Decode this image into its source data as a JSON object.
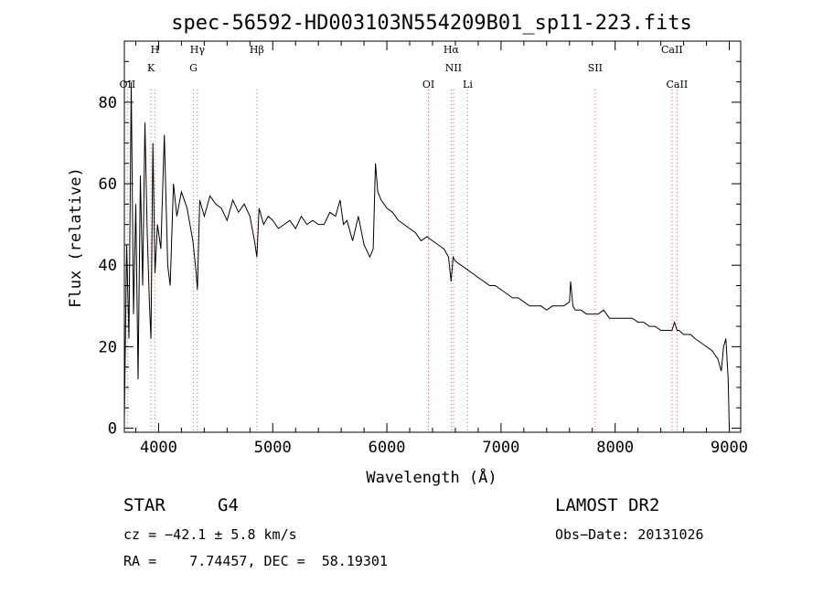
{
  "chart_data": {
    "type": "line",
    "title": "spec-56592-HD003103N554209B01_sp11-223.fits",
    "xlabel": "Wavelength (Å)",
    "ylabel": "Flux (relative)",
    "xlim": [
      3700,
      9100
    ],
    "ylim": [
      -1,
      95
    ],
    "x_ticks": [
      4000,
      5000,
      6000,
      7000,
      8000,
      9000
    ],
    "y_ticks": [
      0,
      20,
      40,
      60,
      80
    ],
    "grid": false,
    "series": [
      {
        "x": [
          3700,
          3720,
          3740,
          3760,
          3780,
          3800,
          3820,
          3840,
          3860,
          3880,
          3900,
          3920,
          3933,
          3950,
          3968,
          3990,
          4020,
          4050,
          4080,
          4101,
          4130,
          4160,
          4200,
          4250,
          4300,
          4330,
          4340,
          4360,
          4400,
          4450,
          4500,
          4550,
          4600,
          4650,
          4700,
          4750,
          4800,
          4840,
          4861,
          4880,
          4920,
          4960,
          5000,
          5050,
          5100,
          5150,
          5200,
          5250,
          5300,
          5350,
          5400,
          5450,
          5500,
          5550,
          5590,
          5620,
          5650,
          5700,
          5750,
          5800,
          5850,
          5880,
          5900,
          5920,
          5950,
          6000,
          6050,
          6100,
          6150,
          6200,
          6250,
          6300,
          6350,
          6400,
          6450,
          6500,
          6540,
          6563,
          6580,
          6600,
          6650,
          6700,
          6750,
          6800,
          6850,
          6900,
          6950,
          7000,
          7050,
          7100,
          7150,
          7200,
          7250,
          7300,
          7350,
          7400,
          7450,
          7500,
          7550,
          7600,
          7610,
          7630,
          7650,
          7700,
          7750,
          7800,
          7850,
          7900,
          7950,
          8000,
          8050,
          8100,
          8150,
          8200,
          8250,
          8300,
          8350,
          8400,
          8450,
          8498,
          8520,
          8542,
          8560,
          8600,
          8662,
          8700,
          8750,
          8800,
          8850,
          8900,
          8930,
          8950,
          8970,
          8990,
          9000
        ],
        "y": [
          2,
          45,
          22,
          85,
          28,
          55,
          12,
          62,
          35,
          75,
          48,
          30,
          22,
          70,
          38,
          50,
          44,
          72,
          40,
          35,
          60,
          52,
          58,
          54,
          46,
          38,
          34,
          56,
          52,
          57,
          55,
          54,
          51,
          56,
          53,
          55,
          52,
          46,
          42,
          54,
          50,
          52,
          51,
          49,
          50,
          51,
          49,
          52,
          50,
          51,
          50,
          50,
          53,
          52,
          56,
          50,
          51,
          46,
          52,
          45,
          42,
          44,
          65,
          58,
          56,
          54,
          53,
          51,
          50,
          49,
          48,
          46,
          47,
          46,
          45,
          44,
          42,
          36,
          42,
          41,
          40,
          39,
          38,
          37,
          36,
          35,
          35,
          34,
          33,
          32,
          32,
          31,
          30,
          30,
          30,
          29,
          30,
          30,
          30,
          31,
          36,
          30,
          29,
          29,
          28,
          28,
          28,
          29,
          27,
          27,
          27,
          27,
          27,
          26,
          26,
          25,
          25,
          24,
          24,
          24,
          26,
          24,
          24,
          23,
          23,
          22,
          21,
          20,
          19,
          17,
          14,
          20,
          22,
          12,
          0
        ]
      }
    ],
    "lines_top": [
      {
        "label": "H",
        "x": 3968
      },
      {
        "label": "K",
        "x": 3933
      },
      {
        "label": "Hγ",
        "x": 4340
      },
      {
        "label": "G",
        "x": 4305
      },
      {
        "label": "Hβ",
        "x": 4861
      },
      {
        "label": "NII",
        "x": 6584
      },
      {
        "label": "Hα",
        "x": 6563
      },
      {
        "label": "SII",
        "x": 7825
      },
      {
        "label": "CaII",
        "x": 8498
      }
    ],
    "lines_bottom": [
      {
        "label": "OII",
        "x": 3727
      },
      {
        "label": "OI",
        "x": 6364
      },
      {
        "label": "Li",
        "x": 6708
      },
      {
        "label": "CaII",
        "x": 8542
      }
    ]
  },
  "info": {
    "object_class": "STAR",
    "subclass": "G4",
    "survey": "LAMOST DR2",
    "cz": "cz = −42.1 ± 5.8 km/s",
    "obs_date": "Obs−Date: 20131026",
    "coords": "RA =    7.74457, DEC =  58.19301"
  }
}
